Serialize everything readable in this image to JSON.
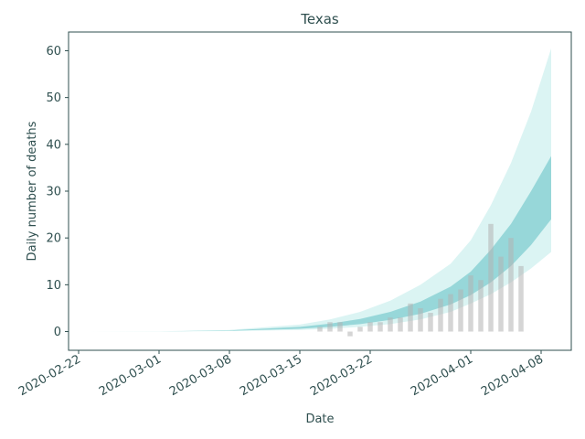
{
  "chart_data": {
    "type": "area",
    "title": "Texas",
    "xlabel": "Date",
    "ylabel": "Daily number of deaths",
    "x_ticks": [
      "2020-02-22",
      "2020-03-01",
      "2020-03-08",
      "2020-03-15",
      "2020-03-22",
      "2020-04-01",
      "2020-04-08"
    ],
    "y_ticks": [
      0,
      10,
      20,
      30,
      40,
      50,
      60
    ],
    "xlim": [
      "2020-02-21",
      "2020-04-11"
    ],
    "ylim": [
      -4,
      64
    ],
    "grid": false,
    "colors": {
      "axis": "#2f4f4f",
      "band_outer": "#99e0dc",
      "band_inner": "#5ebfc2",
      "bars": "#b3b3b3"
    },
    "bands": [
      {
        "x": [
          "2020-02-23",
          "2020-03-01",
          "2020-03-08",
          "2020-03-15",
          "2020-03-18",
          "2020-03-21",
          "2020-03-24",
          "2020-03-27",
          "2020-03-30",
          "2020-04-01",
          "2020-04-03",
          "2020-04-05",
          "2020-04-07",
          "2020-04-09"
        ],
        "lower": [
          0,
          0.01,
          0.1,
          0.35,
          0.6,
          1.0,
          1.6,
          2.6,
          4.2,
          6.0,
          8.0,
          10.5,
          13.5,
          17.0
        ],
        "upper": [
          0,
          0.05,
          0.35,
          1.5,
          2.6,
          4.2,
          6.6,
          10.0,
          14.5,
          19.5,
          27.0,
          36.0,
          47.0,
          60.5
        ]
      },
      {
        "x": [
          "2020-02-23",
          "2020-03-01",
          "2020-03-08",
          "2020-03-15",
          "2020-03-18",
          "2020-03-21",
          "2020-03-24",
          "2020-03-27",
          "2020-03-30",
          "2020-04-01",
          "2020-04-03",
          "2020-04-05",
          "2020-04-07",
          "2020-04-09"
        ],
        "lower": [
          0,
          0.02,
          0.17,
          0.6,
          1.0,
          1.6,
          2.5,
          3.8,
          5.8,
          7.8,
          10.5,
          14.0,
          18.5,
          24.0
        ],
        "upper": [
          0,
          0.03,
          0.25,
          1.0,
          1.7,
          2.7,
          4.2,
          6.4,
          9.6,
          12.8,
          17.5,
          23.0,
          30.0,
          37.5
        ]
      }
    ],
    "bars": {
      "x": [
        "2020-03-17",
        "2020-03-18",
        "2020-03-19",
        "2020-03-20",
        "2020-03-21",
        "2020-03-22",
        "2020-03-23",
        "2020-03-24",
        "2020-03-25",
        "2020-03-26",
        "2020-03-27",
        "2020-03-28",
        "2020-03-29",
        "2020-03-30",
        "2020-03-31",
        "2020-04-01",
        "2020-04-02",
        "2020-04-03",
        "2020-04-04",
        "2020-04-05",
        "2020-04-06"
      ],
      "values": [
        1,
        2,
        2,
        -1,
        1,
        2,
        2,
        3,
        3,
        6,
        5,
        4,
        7,
        8,
        9,
        12,
        11,
        23,
        16,
        20,
        14
      ]
    }
  }
}
